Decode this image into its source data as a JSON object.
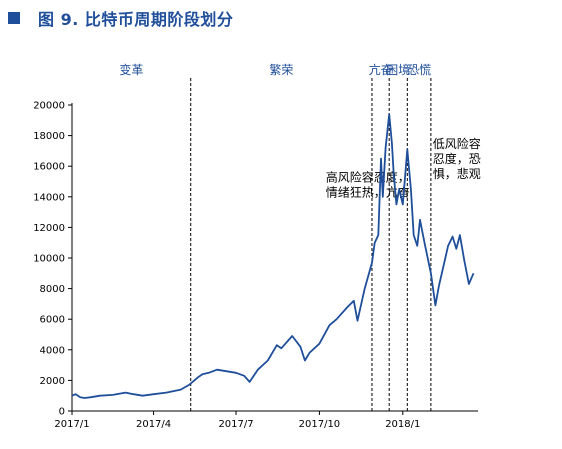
{
  "figure_title": "图 9. 比特币周期阶段划分",
  "chart_data": {
    "type": "line",
    "title": "",
    "xlabel": "",
    "ylabel": "",
    "ylim": [
      0,
      20000
    ],
    "yticks": [
      0,
      2000,
      4000,
      6000,
      8000,
      10000,
      12000,
      14000,
      16000,
      18000,
      20000
    ],
    "xlim": [
      "2017-01-01",
      "2018-03-25"
    ],
    "xticks": [
      {
        "date": "2017-01-01",
        "label": "2017/1"
      },
      {
        "date": "2017-04-01",
        "label": "2017/4"
      },
      {
        "date": "2017-07-01",
        "label": "2017/7"
      },
      {
        "date": "2017-10-01",
        "label": "2017/10"
      },
      {
        "date": "2018-01-01",
        "label": "2018/1"
      }
    ],
    "grid": false,
    "line_color": "#1f4e9a",
    "phase_boundaries": [
      "2017-05-12",
      "2017-11-28",
      "2017-12-17",
      "2018-01-06",
      "2018-02-01"
    ],
    "phases": [
      {
        "label": "变革",
        "start": "2017-01-01",
        "end": "2017-05-12"
      },
      {
        "label": "繁荣",
        "start": "2017-05-12",
        "end": "2017-11-28"
      },
      {
        "label": "亢奋",
        "start": "2017-11-28",
        "end": "2017-12-17"
      },
      {
        "label": "困境",
        "start": "2017-12-17",
        "end": "2018-01-06"
      },
      {
        "label": "恐慌",
        "start": "2018-01-06",
        "end": "2018-02-01"
      }
    ],
    "annotations": [
      {
        "lines": [
          "高风险容忍度，",
          "情绪狂热，亢奋"
        ],
        "anchor_date": "2017-10-08",
        "anchor_value": 15000
      },
      {
        "lines": [
          "低风险容",
          "忍度，恐",
          "惧，悲观"
        ],
        "anchor_date": "2018-02-03",
        "anchor_value": 17200
      }
    ],
    "series": [
      {
        "x": [
          "2017-01-01",
          "2017-01-05",
          "2017-01-10",
          "2017-01-15",
          "2017-01-22",
          "2017-02-01",
          "2017-02-15",
          "2017-03-01",
          "2017-03-10",
          "2017-03-20",
          "2017-04-01",
          "2017-04-15",
          "2017-05-01",
          "2017-05-10",
          "2017-05-20",
          "2017-05-25",
          "2017-06-01",
          "2017-06-10",
          "2017-06-20",
          "2017-07-01",
          "2017-07-10",
          "2017-07-16",
          "2017-07-25",
          "2017-08-05",
          "2017-08-15",
          "2017-08-20",
          "2017-09-01",
          "2017-09-10",
          "2017-09-15",
          "2017-09-20",
          "2017-10-01",
          "2017-10-12",
          "2017-10-20",
          "2017-11-01",
          "2017-11-08",
          "2017-11-12",
          "2017-11-20",
          "2017-11-28",
          "2017-12-01",
          "2017-12-05",
          "2017-12-08",
          "2017-12-10",
          "2017-12-13",
          "2017-12-17",
          "2017-12-20",
          "2017-12-22",
          "2017-12-25",
          "2017-12-28",
          "2018-01-01",
          "2018-01-06",
          "2018-01-10",
          "2018-01-13",
          "2018-01-17",
          "2018-01-20",
          "2018-01-25",
          "2018-02-01",
          "2018-02-06",
          "2018-02-10",
          "2018-02-15",
          "2018-02-20",
          "2018-02-25",
          "2018-03-01",
          "2018-03-05",
          "2018-03-10",
          "2018-03-15",
          "2018-03-20"
        ],
        "values": [
          1000,
          1100,
          900,
          850,
          900,
          1000,
          1050,
          1200,
          1100,
          1000,
          1100,
          1200,
          1400,
          1700,
          2200,
          2400,
          2500,
          2700,
          2600,
          2500,
          2300,
          1900,
          2700,
          3300,
          4300,
          4100,
          4900,
          4200,
          3300,
          3800,
          4400,
          5600,
          6000,
          6800,
          7200,
          5900,
          8000,
          9700,
          11000,
          11500,
          16500,
          14000,
          17200,
          19400,
          17500,
          15500,
          13500,
          14500,
          13500,
          17100,
          14500,
          11500,
          10800,
          12500,
          11000,
          9000,
          6900,
          8200,
          9500,
          10800,
          11400,
          10600,
          11500,
          9800,
          8300,
          9000
        ]
      }
    ]
  }
}
